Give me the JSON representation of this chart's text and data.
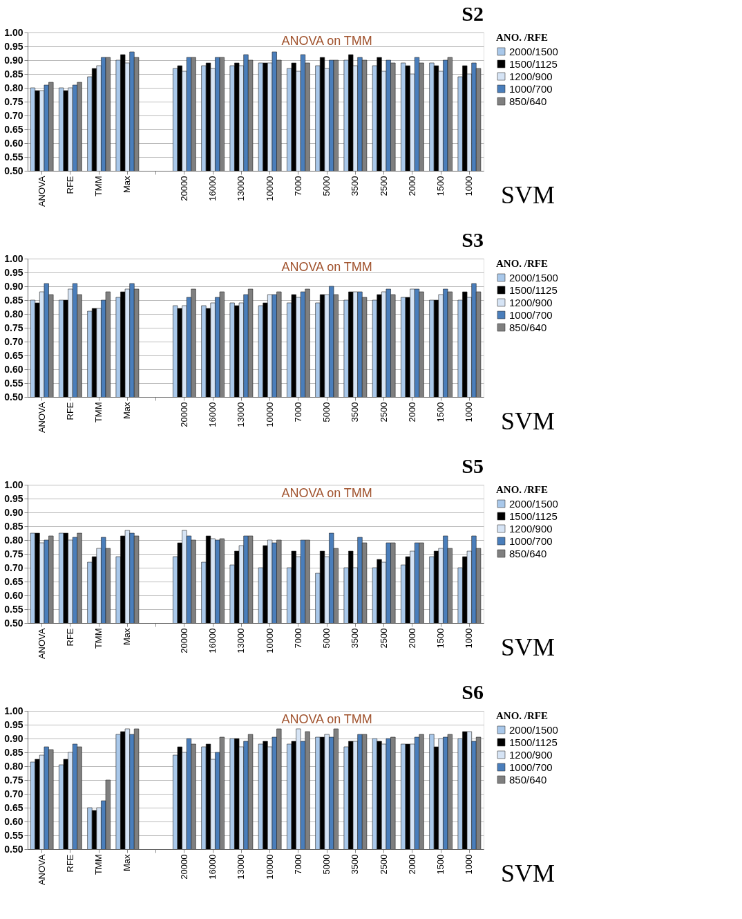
{
  "chart_data": [
    {
      "type": "bar",
      "title": "S2",
      "legend_title": "ANO. /RFE",
      "annotations": [
        "ANOVA on TMM",
        "SVM"
      ],
      "legend": "right",
      "grid": "y",
      "categories": [
        "ANOVA",
        "RFE",
        "TMM",
        "Max",
        null,
        "20000",
        "16000",
        "13000",
        "10000",
        "7000",
        "5000",
        "3500",
        "2500",
        "2000",
        "1500",
        "1000"
      ],
      "ylim": [
        0.5,
        1.0
      ],
      "yticks": [
        {
          "value": 0.5,
          "label": "0.50"
        },
        {
          "value": 0.55,
          "label": "0.55"
        },
        {
          "value": 0.6,
          "label": "0.60"
        },
        {
          "value": 0.65,
          "label": "0.65"
        },
        {
          "value": 0.7,
          "label": "0.70"
        },
        {
          "value": 0.75,
          "label": "0.75"
        },
        {
          "value": 0.8,
          "label": "0.80"
        },
        {
          "value": 0.85,
          "label": "0.85"
        },
        {
          "value": 0.9,
          "label": "0.90"
        },
        {
          "value": 0.95,
          "label": "0.95"
        },
        {
          "value": 1.0,
          "label": "1.00"
        }
      ],
      "series": [
        {
          "name": "2000/1500",
          "color": "#a9c8ea",
          "values": [
            0.8,
            0.8,
            0.84,
            0.9,
            null,
            0.87,
            0.88,
            0.88,
            0.89,
            0.87,
            0.88,
            0.9,
            0.88,
            0.89,
            0.89,
            0.84
          ]
        },
        {
          "name": "1500/1125",
          "color": "#000000",
          "values": [
            0.79,
            0.79,
            0.87,
            0.92,
            null,
            0.88,
            0.89,
            0.89,
            0.89,
            0.89,
            0.91,
            0.92,
            0.91,
            0.88,
            0.88,
            0.88
          ]
        },
        {
          "name": "1200/900",
          "color": "#d6e4f5",
          "values": [
            0.79,
            0.8,
            0.88,
            0.89,
            null,
            0.86,
            0.87,
            0.88,
            0.89,
            0.86,
            0.87,
            0.88,
            0.86,
            0.85,
            0.86,
            0.85
          ]
        },
        {
          "name": "1000/700",
          "color": "#4a7ebb",
          "values": [
            0.81,
            0.81,
            0.91,
            0.93,
            null,
            0.91,
            0.91,
            0.92,
            0.93,
            0.92,
            0.9,
            0.91,
            0.9,
            0.91,
            0.9,
            0.89
          ]
        },
        {
          "name": "850/640",
          "color": "#7f7f7f",
          "values": [
            0.82,
            0.82,
            0.91,
            0.91,
            null,
            0.91,
            0.91,
            0.9,
            0.9,
            0.89,
            0.9,
            0.9,
            0.89,
            0.89,
            0.91,
            0.87
          ]
        }
      ]
    },
    {
      "type": "bar",
      "title": "S3",
      "legend_title": "ANO. /RFE",
      "annotations": [
        "ANOVA on TMM",
        "SVM"
      ],
      "legend": "right",
      "grid": "y",
      "categories": [
        "ANOVA",
        "RFE",
        "TMM",
        "Max",
        null,
        "20000",
        "16000",
        "13000",
        "10000",
        "7000",
        "5000",
        "3500",
        "2500",
        "2000",
        "1500",
        "1000"
      ],
      "ylim": [
        0.5,
        1.0
      ],
      "yticks": [
        {
          "value": 0.5,
          "label": "0.50"
        },
        {
          "value": 0.55,
          "label": "0.55"
        },
        {
          "value": 0.6,
          "label": "0.60"
        },
        {
          "value": 0.65,
          "label": "0.65"
        },
        {
          "value": 0.7,
          "label": "0.70"
        },
        {
          "value": 0.75,
          "label": "0.75"
        },
        {
          "value": 0.8,
          "label": "0.80"
        },
        {
          "value": 0.85,
          "label": "0.85"
        },
        {
          "value": 0.9,
          "label": "0.90"
        },
        {
          "value": 0.95,
          "label": "0.95"
        },
        {
          "value": 1.0,
          "label": "1.00"
        }
      ],
      "series": [
        {
          "name": "2000/1500",
          "color": "#a9c8ea",
          "values": [
            0.85,
            0.85,
            0.81,
            0.86,
            null,
            0.83,
            0.83,
            0.84,
            0.83,
            0.84,
            0.84,
            0.85,
            0.85,
            0.86,
            0.85,
            0.85
          ]
        },
        {
          "name": "1500/1125",
          "color": "#000000",
          "values": [
            0.84,
            0.85,
            0.82,
            0.88,
            null,
            0.82,
            0.82,
            0.83,
            0.84,
            0.87,
            0.87,
            0.88,
            0.87,
            0.86,
            0.85,
            0.88
          ]
        },
        {
          "name": "1200/900",
          "color": "#d6e4f5",
          "values": [
            0.88,
            0.89,
            0.82,
            0.89,
            null,
            0.83,
            0.84,
            0.84,
            0.87,
            0.86,
            0.87,
            0.88,
            0.88,
            0.89,
            0.87,
            0.86
          ]
        },
        {
          "name": "1000/700",
          "color": "#4a7ebb",
          "values": [
            0.91,
            0.91,
            0.85,
            0.91,
            null,
            0.86,
            0.86,
            0.87,
            0.87,
            0.88,
            0.9,
            0.88,
            0.89,
            0.89,
            0.89,
            0.91
          ]
        },
        {
          "name": "850/640",
          "color": "#7f7f7f",
          "values": [
            0.87,
            0.87,
            0.88,
            0.89,
            null,
            0.89,
            0.88,
            0.89,
            0.88,
            0.89,
            0.87,
            0.86,
            0.87,
            0.88,
            0.88,
            0.88
          ]
        }
      ]
    },
    {
      "type": "bar",
      "title": "S5",
      "legend_title": "ANO. /RFE",
      "annotations": [
        "ANOVA on TMM",
        "SVM"
      ],
      "legend": "right",
      "grid": "y",
      "categories": [
        "ANOVA",
        "RFE",
        "TMM",
        "Max",
        null,
        "20000",
        "16000",
        "13000",
        "10000",
        "7000",
        "5000",
        "3500",
        "2500",
        "2000",
        "1500",
        "1000"
      ],
      "ylim": [
        0.5,
        1.0
      ],
      "yticks": [
        {
          "value": 0.5,
          "label": "0.50"
        },
        {
          "value": 0.55,
          "label": "0.55"
        },
        {
          "value": 0.6,
          "label": "0.60"
        },
        {
          "value": 0.65,
          "label": "0.65"
        },
        {
          "value": 0.7,
          "label": "0.70"
        },
        {
          "value": 0.75,
          "label": "0.75"
        },
        {
          "value": 0.8,
          "label": "0.80"
        },
        {
          "value": 0.85,
          "label": "0.85"
        },
        {
          "value": 0.9,
          "label": "0.90"
        },
        {
          "value": 0.95,
          "label": "0.95"
        },
        {
          "value": 1.0,
          "label": "1.00"
        }
      ],
      "series": [
        {
          "name": "2000/1500",
          "color": "#a9c8ea",
          "values": [
            0.825,
            0.825,
            0.72,
            0.74,
            null,
            0.74,
            0.72,
            0.71,
            0.7,
            0.7,
            0.68,
            0.7,
            0.7,
            0.71,
            0.74,
            0.7
          ]
        },
        {
          "name": "1500/1125",
          "color": "#000000",
          "values": [
            0.825,
            0.825,
            0.74,
            0.815,
            null,
            0.79,
            0.815,
            0.76,
            0.78,
            0.76,
            0.76,
            0.76,
            0.73,
            0.74,
            0.76,
            0.74
          ]
        },
        {
          "name": "1200/900",
          "color": "#d6e4f5",
          "values": [
            0.79,
            0.8,
            0.77,
            0.835,
            null,
            0.835,
            0.805,
            0.78,
            0.8,
            0.74,
            0.74,
            0.7,
            0.72,
            0.76,
            0.77,
            0.76
          ]
        },
        {
          "name": "1000/700",
          "color": "#4a7ebb",
          "values": [
            0.8,
            0.81,
            0.81,
            0.825,
            null,
            0.815,
            0.8,
            0.815,
            0.79,
            0.8,
            0.825,
            0.81,
            0.79,
            0.79,
            0.815,
            0.815
          ]
        },
        {
          "name": "850/640",
          "color": "#7f7f7f",
          "values": [
            0.815,
            0.825,
            0.77,
            0.815,
            null,
            0.8,
            0.805,
            0.815,
            0.8,
            0.8,
            0.77,
            0.79,
            0.79,
            0.79,
            0.77,
            0.77
          ]
        }
      ]
    },
    {
      "type": "bar",
      "title": "S6",
      "legend_title": "ANO. /RFE",
      "annotations": [
        "ANOVA on TMM",
        "SVM"
      ],
      "legend": "right",
      "grid": "y",
      "categories": [
        "ANOVA",
        "RFE",
        "TMM",
        "Max",
        null,
        "20000",
        "16000",
        "13000",
        "10000",
        "7000",
        "5000",
        "3500",
        "2500",
        "2000",
        "1500",
        "1000"
      ],
      "ylim": [
        0.5,
        1.0
      ],
      "yticks": [
        {
          "value": 0.5,
          "label": "0.50"
        },
        {
          "value": 0.55,
          "label": "0.55"
        },
        {
          "value": 0.6,
          "label": "0.60"
        },
        {
          "value": 0.65,
          "label": "0.65"
        },
        {
          "value": 0.7,
          "label": "0.70"
        },
        {
          "value": 0.75,
          "label": "0.75"
        },
        {
          "value": 0.8,
          "label": "0.80"
        },
        {
          "value": 0.85,
          "label": "0.85"
        },
        {
          "value": 0.9,
          "label": "0.90"
        },
        {
          "value": 0.95,
          "label": "0.95"
        },
        {
          "value": 1.0,
          "label": "1.00"
        }
      ],
      "series": [
        {
          "name": "2000/1500",
          "color": "#a9c8ea",
          "values": [
            0.815,
            0.805,
            0.65,
            0.915,
            null,
            0.84,
            0.87,
            0.9,
            0.88,
            0.88,
            0.905,
            0.87,
            0.9,
            0.88,
            0.915,
            0.9
          ]
        },
        {
          "name": "1500/1125",
          "color": "#000000",
          "values": [
            0.825,
            0.825,
            0.64,
            0.925,
            null,
            0.87,
            0.88,
            0.9,
            0.89,
            0.89,
            0.905,
            0.89,
            0.89,
            0.88,
            0.87,
            0.925
          ]
        },
        {
          "name": "1200/900",
          "color": "#d6e4f5",
          "values": [
            0.84,
            0.85,
            0.65,
            0.935,
            null,
            0.85,
            0.825,
            0.87,
            0.87,
            0.935,
            0.915,
            0.89,
            0.88,
            0.88,
            0.9,
            0.925
          ]
        },
        {
          "name": "1000/700",
          "color": "#4a7ebb",
          "values": [
            0.87,
            0.88,
            0.675,
            0.915,
            null,
            0.9,
            0.85,
            0.89,
            0.905,
            0.89,
            0.905,
            0.915,
            0.9,
            0.905,
            0.905,
            0.89
          ]
        },
        {
          "name": "850/640",
          "color": "#7f7f7f",
          "values": [
            0.86,
            0.87,
            0.75,
            0.935,
            null,
            0.88,
            0.905,
            0.915,
            0.935,
            0.925,
            0.935,
            0.915,
            0.905,
            0.915,
            0.915,
            0.905
          ]
        }
      ]
    }
  ]
}
